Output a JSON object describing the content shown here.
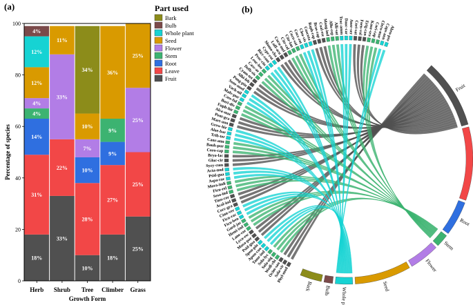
{
  "figure": {
    "panel_a_label": "(a)",
    "panel_b_label": "(b)"
  },
  "chart_data": [
    {
      "type": "bar",
      "stacked": true,
      "title": "",
      "xlabel": "Growth Form",
      "ylabel": "Percentage of species",
      "ylim": [
        0,
        100
      ],
      "yticks": [
        0,
        20,
        40,
        60,
        80,
        100
      ],
      "categories": [
        "Herb",
        "Shrub",
        "Tree",
        "Climber",
        "Grass"
      ],
      "legend_title": "Part used",
      "legend_placement": "right",
      "series": [
        {
          "name": "Fruit",
          "color": "#505050",
          "values": [
            18,
            33,
            10,
            18,
            25
          ],
          "labels": [
            "18%",
            "33%",
            "10%",
            "18%",
            "25%"
          ]
        },
        {
          "name": "Leave",
          "color": "#f24747",
          "values": [
            31,
            22,
            28,
            27,
            25
          ],
          "labels": [
            "31%",
            "22%",
            "28%",
            "27%",
            "25%"
          ]
        },
        {
          "name": "Root",
          "color": "#2f6fe0",
          "values": [
            14,
            0,
            10,
            9,
            0
          ],
          "labels": [
            "14%",
            "",
            "10%",
            "9%",
            ""
          ]
        },
        {
          "name": "Stem",
          "color": "#3cb371",
          "values": [
            4,
            0,
            0,
            9,
            0
          ],
          "labels": [
            "4%",
            "",
            "",
            "9%",
            ""
          ]
        },
        {
          "name": "Flower",
          "color": "#b27de6",
          "values": [
            4,
            33,
            7,
            0,
            25
          ],
          "labels": [
            "4%",
            "33%",
            "7%",
            "",
            "25%"
          ]
        },
        {
          "name": "Seed",
          "color": "#d99a00",
          "values": [
            12,
            11,
            10,
            36,
            25
          ],
          "labels": [
            "12%",
            "11%",
            "10%",
            "36%",
            "25%"
          ]
        },
        {
          "name": "Whole plant",
          "color": "#16d3d3",
          "values": [
            12,
            0,
            0,
            0,
            0
          ],
          "labels": [
            "12%",
            "",
            "",
            "",
            ""
          ]
        },
        {
          "name": "Bulb",
          "color": "#7b4a4a",
          "values": [
            4,
            0,
            0,
            0,
            0
          ],
          "labels": [
            "4%",
            "",
            "",
            "",
            ""
          ]
        },
        {
          "name": "Bark",
          "color": "#8c8c1a",
          "values": [
            0,
            0,
            34,
            0,
            0
          ],
          "labels": [
            "",
            "",
            "34%",
            "",
            ""
          ]
        }
      ]
    },
    {
      "type": "chord",
      "title": "",
      "targets": [
        {
          "name": "Fruit",
          "color": "#505050",
          "weight": 16
        },
        {
          "name": "Leave",
          "color": "#f24747",
          "weight": 17
        },
        {
          "name": "Root",
          "color": "#2f6fe0",
          "weight": 8
        },
        {
          "name": "Stem",
          "color": "#3cb371",
          "weight": 3
        },
        {
          "name": "Flower",
          "color": "#b27de6",
          "weight": 7
        },
        {
          "name": "Seed",
          "color": "#d99a00",
          "weight": 13
        },
        {
          "name": "Whole plant",
          "color": "#16d3d3",
          "weight": 4
        },
        {
          "name": "Bulb",
          "color": "#7b4a4a",
          "weight": 2
        },
        {
          "name": "Bark",
          "color": "#8c8c1a",
          "weight": 5
        }
      ],
      "species": [
        "Phyl-mod",
        "Sola-vir",
        "Ocim-san",
        "Wedl-chi",
        "Sola-nig",
        "Sola-lyc",
        "Tamr-ind",
        "Apon-con",
        "Spon-pin",
        "Psid-gua",
        "Musa-par",
        "Lyco-esc",
        "Lane-cor",
        "Hemi-ind",
        "Gard-jas",
        "Ficu-ben",
        "Ficu-rac",
        "Cinn-ver",
        "Cocc-gra",
        "Acal-ind",
        "Tino-cor",
        "Sesa-ind",
        "Ficu-rel",
        "Mora-indi",
        "Aspa-rac",
        "Psid-gua",
        "Acta-mul",
        "Syzy-cum",
        "Gluc-cir",
        "Bryo-lac",
        "Coro-cap",
        "Bauh-pur",
        "Canr-ann",
        "Trib-ter",
        "Aloe-bar",
        "Grew-hir",
        "Mart-ann",
        "Pent-gra",
        "Alca-mac",
        "Euph-hir",
        "Bori-div",
        "Cass-ful",
        "Malv-pur",
        "Vach-nil",
        "Sene-mod",
        "Pong-pin",
        "Albi-leb",
        "Cyam-tet",
        "Defb-sis",
        "Cass-ae",
        "Leuc-leu",
        "Proc-cin",
        "Ricc-com",
        "Cypr-rot",
        "Momo-cha",
        "Luff-acu",
        "Cucu-mel",
        "Citr-col",
        "Citr-lan",
        "Cucu-sat",
        "Cocc-ret",
        "Cleo-vis",
        "Cuscuta",
        "Raph-rap",
        "Bras-rap",
        "Coal-esc",
        "Mang-ind",
        "Allu-cep",
        "Alli-sat",
        "Trac-amm",
        "Dauc-car",
        "Aner-ser",
        "Cori-sat",
        "Foen-vul",
        "Erig-can",
        "Kaur-sra",
        "Cori-cap",
        "Clero-mar",
        "Caps-ann",
        "Abro-pre"
      ]
    }
  ]
}
